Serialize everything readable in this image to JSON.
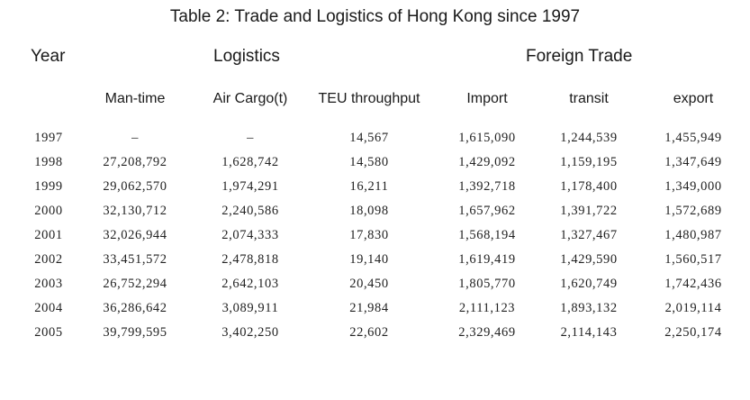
{
  "title": "Table 2: Trade and Logistics of Hong Kong since 1997",
  "groups": {
    "year": "Year",
    "logistics": "Logistics",
    "foreign_trade": "Foreign Trade"
  },
  "columns": {
    "man_time": "Man-time",
    "air_cargo": "Air Cargo(t)",
    "teu": "TEU throughput",
    "import": "Import",
    "transit": "transit",
    "export": "export"
  },
  "rows": [
    {
      "year": "1997",
      "man_time": "–",
      "air_cargo": "–",
      "teu": "14,567",
      "import": "1,615,090",
      "transit": "1,244,539",
      "export": "1,455,949"
    },
    {
      "year": "1998",
      "man_time": "27,208,792",
      "air_cargo": "1,628,742",
      "teu": "14,580",
      "import": "1,429,092",
      "transit": "1,159,195",
      "export": "1,347,649"
    },
    {
      "year": "1999",
      "man_time": "29,062,570",
      "air_cargo": "1,974,291",
      "teu": "16,211",
      "import": "1,392,718",
      "transit": "1,178,400",
      "export": "1,349,000"
    },
    {
      "year": "2000",
      "man_time": "32,130,712",
      "air_cargo": "2,240,586",
      "teu": "18,098",
      "import": "1,657,962",
      "transit": "1,391,722",
      "export": "1,572,689"
    },
    {
      "year": "2001",
      "man_time": "32,026,944",
      "air_cargo": "2,074,333",
      "teu": "17,830",
      "import": "1,568,194",
      "transit": "1,327,467",
      "export": "1,480,987"
    },
    {
      "year": "2002",
      "man_time": "33,451,572",
      "air_cargo": "2,478,818",
      "teu": "19,140",
      "import": "1,619,419",
      "transit": "1,429,590",
      "export": "1,560,517"
    },
    {
      "year": "2003",
      "man_time": "26,752,294",
      "air_cargo": "2,642,103",
      "teu": "20,450",
      "import": "1,805,770",
      "transit": "1,620,749",
      "export": "1,742,436"
    },
    {
      "year": "2004",
      "man_time": "36,286,642",
      "air_cargo": "3,089,911",
      "teu": "21,984",
      "import": "2,111,123",
      "transit": "1,893,132",
      "export": "2,019,114"
    },
    {
      "year": "2005",
      "man_time": "39,799,595",
      "air_cargo": "3,402,250",
      "teu": "22,602",
      "import": "2,329,469",
      "transit": "2,114,143",
      "export": "2,250,174"
    }
  ]
}
